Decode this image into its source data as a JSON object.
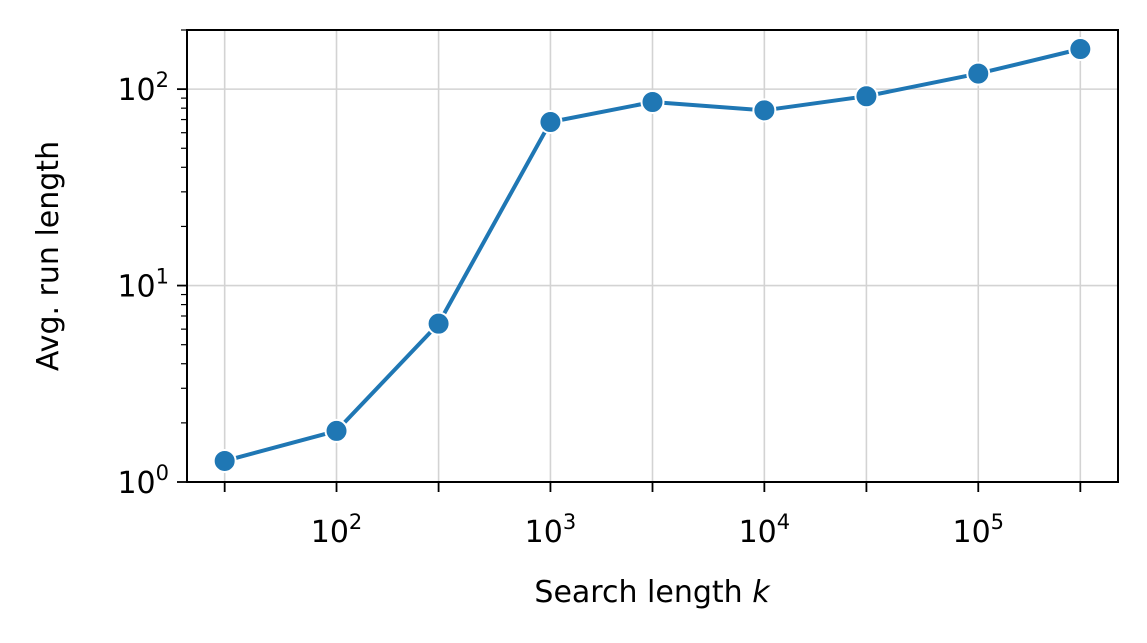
{
  "chart_data": {
    "type": "line",
    "title": "",
    "xlabel": "Search length",
    "xlabel_var": "k",
    "ylabel": "Avg. run length",
    "xscale": "log",
    "yscale": "log",
    "xlim": [
      20,
      450000
    ],
    "ylim": [
      1,
      200
    ],
    "grid": true,
    "series": [
      {
        "name": "Avg. run length",
        "color": "#1f77b4",
        "marker": "circle",
        "x": [
          30,
          100,
          300,
          1000,
          3000,
          10000,
          30000,
          100000,
          300000
        ],
        "y": [
          1.28,
          1.82,
          6.4,
          68,
          86,
          78,
          92,
          120,
          160
        ]
      }
    ],
    "xticks": [
      {
        "value": 100,
        "base": "10",
        "exp": "2"
      },
      {
        "value": 1000,
        "base": "10",
        "exp": "3"
      },
      {
        "value": 10000,
        "base": "10",
        "exp": "4"
      },
      {
        "value": 100000,
        "base": "10",
        "exp": "5"
      }
    ],
    "xticks_minor": [
      30,
      300,
      3000,
      30000,
      300000
    ],
    "yticks": [
      {
        "value": 1,
        "base": "10",
        "exp": "0"
      },
      {
        "value": 10,
        "base": "10",
        "exp": "1"
      },
      {
        "value": 100,
        "base": "10",
        "exp": "2"
      }
    ]
  }
}
